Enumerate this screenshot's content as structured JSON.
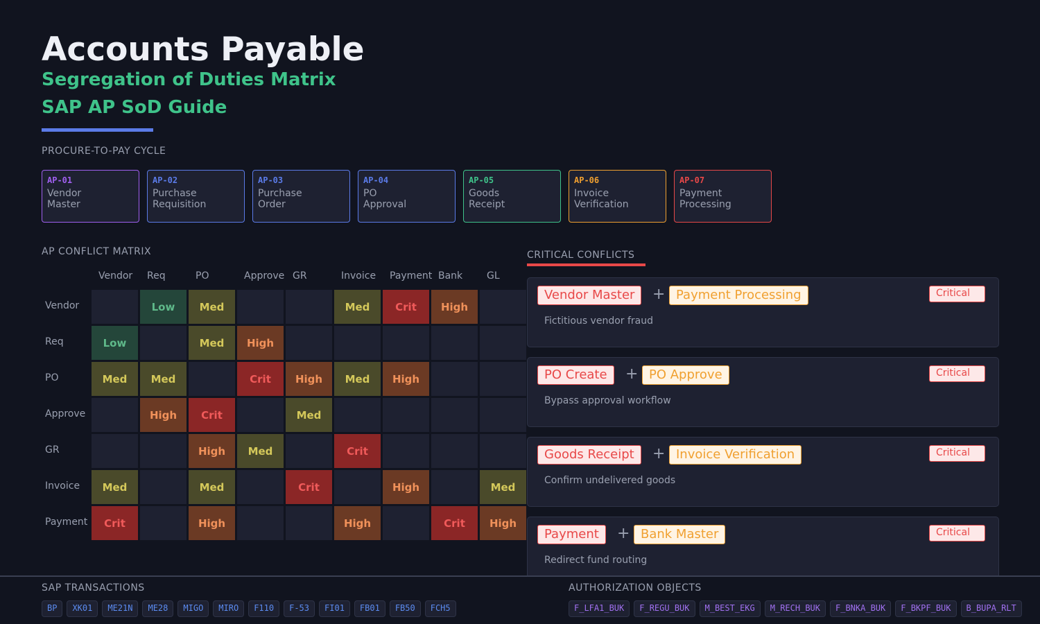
{
  "header": {
    "title": "Accounts Payable",
    "subtitle": "Segregation of Duties Matrix",
    "guide": "SAP AP SoD Guide"
  },
  "cycle": {
    "label": "PROCURE-TO-PAY  CYCLE",
    "steps": [
      {
        "id": "AP-01",
        "name": "Vendor Master",
        "color": "#a060f0"
      },
      {
        "id": "AP-02",
        "name": "Purchase Requisition",
        "color": "#5b7be8"
      },
      {
        "id": "AP-03",
        "name": "Purchase Order",
        "color": "#5b7be8"
      },
      {
        "id": "AP-04",
        "name": "PO Approval",
        "color": "#5b7be8"
      },
      {
        "id": "AP-05",
        "name": "Goods Receipt",
        "color": "#3fc38a"
      },
      {
        "id": "AP-06",
        "name": "Invoice Verification",
        "color": "#f0a030"
      },
      {
        "id": "AP-07",
        "name": "Payment Processing",
        "color": "#e84848"
      }
    ]
  },
  "matrix": {
    "label": "AP  CONFLICT  MATRIX",
    "columns": [
      "Vendor",
      "Req",
      "PO",
      "Approve",
      "GR",
      "Invoice",
      "Payment",
      "Bank",
      "GL"
    ],
    "rows": [
      {
        "name": "Vendor",
        "cells": [
          "",
          "Low",
          "Med",
          "",
          "",
          "Med",
          "Crit",
          "High",
          ""
        ]
      },
      {
        "name": "Req",
        "cells": [
          "Low",
          "",
          "Med",
          "High",
          "",
          "",
          "",
          "",
          ""
        ]
      },
      {
        "name": "PO",
        "cells": [
          "Med",
          "Med",
          "",
          "Crit",
          "High",
          "Med",
          "High",
          "",
          ""
        ]
      },
      {
        "name": "Approve",
        "cells": [
          "",
          "High",
          "Crit",
          "",
          "Med",
          "",
          "",
          "",
          ""
        ]
      },
      {
        "name": "GR",
        "cells": [
          "",
          "",
          "High",
          "Med",
          "",
          "Crit",
          "",
          "",
          ""
        ]
      },
      {
        "name": "Invoice",
        "cells": [
          "Med",
          "",
          "Med",
          "",
          "Crit",
          "",
          "High",
          "",
          "Med"
        ]
      },
      {
        "name": "Payment",
        "cells": [
          "Crit",
          "",
          "High",
          "",
          "",
          "High",
          "",
          "Crit",
          "High"
        ]
      }
    ]
  },
  "conflicts": {
    "label": "CRITICAL  CONFLICTS",
    "items": [
      {
        "a": "Vendor Master",
        "b": "Payment Processing",
        "severity": "Critical",
        "desc": "Fictitious vendor fraud"
      },
      {
        "a": "PO Create",
        "b": "PO Approve",
        "severity": "Critical",
        "desc": "Bypass approval workflow"
      },
      {
        "a": "Goods Receipt",
        "b": "Invoice Verification",
        "severity": "Critical",
        "desc": "Confirm undelivered goods"
      },
      {
        "a": "Payment",
        "b": "Bank Master",
        "severity": "Critical",
        "desc": "Redirect fund routing"
      }
    ]
  },
  "footer": {
    "tx_label": "SAP TRANSACTIONS",
    "transactions": [
      "BP",
      "XK01",
      "ME21N",
      "ME28",
      "MIGO",
      "MIRO",
      "F110",
      "F-53",
      "FI01",
      "FB01",
      "FB50",
      "FCH5"
    ],
    "auth_label": "AUTHORIZATION OBJECTS",
    "auth_objects": [
      "F_LFA1_BUK",
      "F_REGU_BUK",
      "M_BEST_EKG",
      "M_RECH_BUK",
      "F_BNKA_BUK",
      "F_BKPF_BUK",
      "B_BUPA_RLT"
    ]
  }
}
